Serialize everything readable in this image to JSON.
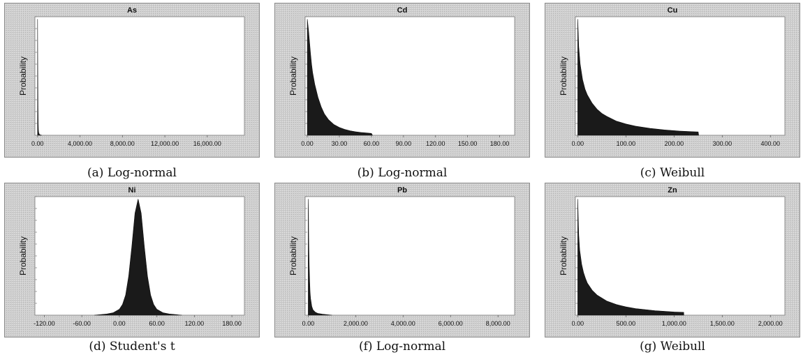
{
  "chart_data": [
    {
      "type": "area",
      "title": "As",
      "ylabel": "Probability",
      "caption": "(a) Log-normal",
      "xticks": [
        "0.00",
        "4,000.00",
        "8,000.00",
        "12,000.00",
        "16,000.00"
      ],
      "xlim": [
        -250,
        19500
      ],
      "series": [
        {
          "x": [
            0,
            20,
            40,
            60,
            80,
            100,
            150,
            200,
            300,
            400
          ],
          "y": [
            0.98,
            0.55,
            0.25,
            0.1,
            0.045,
            0.025,
            0.012,
            0.006,
            0.002,
            0
          ]
        }
      ]
    },
    {
      "type": "area",
      "title": "Cd",
      "ylabel": "Probability",
      "caption": "(b) Log-normal",
      "xticks": [
        "0.00",
        "30.00",
        "60.00",
        "90.00",
        "120.00",
        "150.00",
        "180.00"
      ],
      "xlim": [
        -2,
        194
      ],
      "series": [
        {
          "x": [
            0,
            1,
            2,
            3,
            4,
            5,
            7,
            10,
            13,
            16,
            20,
            25,
            30,
            35,
            40,
            45,
            50,
            55,
            60,
            61
          ],
          "y": [
            0.98,
            0.9,
            0.8,
            0.69,
            0.6,
            0.53,
            0.43,
            0.32,
            0.24,
            0.18,
            0.13,
            0.09,
            0.066,
            0.05,
            0.038,
            0.03,
            0.024,
            0.02,
            0.016,
            0
          ]
        }
      ]
    },
    {
      "type": "area",
      "title": "Cu",
      "ylabel": "Probability",
      "caption": "(c) Weibull",
      "xticks": [
        "0.00",
        "100.00",
        "200.00",
        "300.00",
        "400.00"
      ],
      "xlim": [
        -5,
        430
      ],
      "series": [
        {
          "x": [
            0,
            2,
            5,
            10,
            15,
            20,
            30,
            40,
            50,
            60,
            80,
            100,
            120,
            150,
            180,
            210,
            240,
            250,
            251
          ],
          "y": [
            0.98,
            0.75,
            0.6,
            0.47,
            0.39,
            0.34,
            0.27,
            0.22,
            0.185,
            0.16,
            0.12,
            0.095,
            0.077,
            0.058,
            0.045,
            0.036,
            0.03,
            0.028,
            0
          ]
        }
      ]
    },
    {
      "type": "area",
      "title": "Ni",
      "ylabel": "Probability",
      "caption": "(d) Student's t",
      "xticks": [
        "-120.00",
        "-60.00",
        "0.00",
        "60.00",
        "120.00",
        "180.00"
      ],
      "xlim": [
        -135,
        200
      ],
      "series": [
        {
          "x": [
            -40,
            -20,
            -10,
            0,
            5,
            10,
            15,
            20,
            25,
            30,
            35,
            40,
            45,
            50,
            55,
            60,
            70,
            80,
            100
          ],
          "y": [
            0,
            0.01,
            0.02,
            0.05,
            0.09,
            0.17,
            0.33,
            0.58,
            0.86,
            0.98,
            0.86,
            0.58,
            0.33,
            0.17,
            0.09,
            0.05,
            0.02,
            0.01,
            0
          ]
        }
      ]
    },
    {
      "type": "area",
      "title": "Pb",
      "ylabel": "Probability",
      "caption": "(f) Log-normal",
      "xticks": [
        "0.00",
        "2,000.00",
        "4,000.00",
        "6,000.00",
        "8,000.00"
      ],
      "xlim": [
        -130,
        8700
      ],
      "series": [
        {
          "x": [
            0,
            10,
            20,
            40,
            60,
            80,
            100,
            150,
            200,
            300,
            400,
            600,
            800,
            1000
          ],
          "y": [
            0.98,
            0.85,
            0.65,
            0.42,
            0.28,
            0.19,
            0.14,
            0.075,
            0.045,
            0.025,
            0.015,
            0.008,
            0.004,
            0
          ]
        }
      ]
    },
    {
      "type": "area",
      "title": "Zn",
      "ylabel": "Probability",
      "caption": "(g) Weibull",
      "xticks": [
        "0.00",
        "500.00",
        "1,000.00",
        "1,500.00",
        "2,000.00"
      ],
      "xlim": [
        -25,
        2150
      ],
      "series": [
        {
          "x": [
            0,
            5,
            10,
            20,
            40,
            60,
            80,
            100,
            150,
            200,
            300,
            400,
            500,
            600,
            800,
            1000,
            1100,
            1101
          ],
          "y": [
            0.98,
            0.82,
            0.68,
            0.55,
            0.43,
            0.36,
            0.31,
            0.27,
            0.21,
            0.17,
            0.12,
            0.09,
            0.07,
            0.056,
            0.038,
            0.027,
            0.024,
            0
          ]
        }
      ]
    }
  ]
}
